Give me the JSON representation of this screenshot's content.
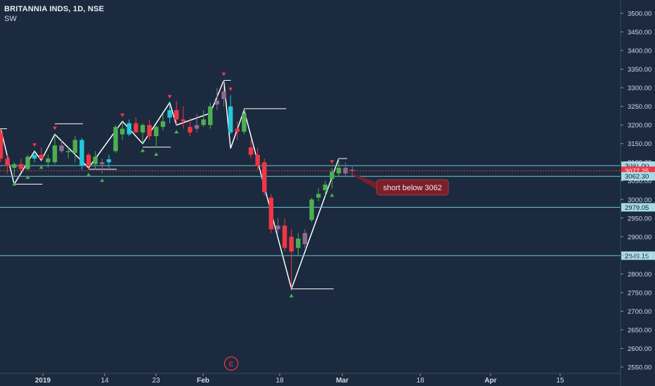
{
  "header": {
    "symbol": "BRITANNIA INDS, 1D, NSE",
    "indicator": "SW"
  },
  "colors": {
    "background": "#1b2a3e",
    "bull": "#4caf50",
    "bear": "#f23645",
    "cyan": "#26c6da",
    "purple": "#8e6b8f",
    "zigzag": "#ffffff",
    "level_line": "#6fc6d6",
    "current_price": "#f23645",
    "annotation_bg": "#7b1f2a"
  },
  "chart_data": {
    "type": "candlestick",
    "y_axis": {
      "range": [
        2540,
        3530
      ],
      "ticks": [
        "3500.00",
        "3450.00",
        "3400.00",
        "3350.00",
        "3300.00",
        "3250.00",
        "3200.00",
        "3150.00",
        "3100.00",
        "3050.00",
        "3000.00",
        "2950.00",
        "2900.00",
        "2850.00",
        "2800.00",
        "2750.00",
        "2700.00",
        "2650.00",
        "2600.00",
        "2550.00"
      ]
    },
    "x_axis": {
      "ticks": [
        "2019",
        "14",
        "23",
        "Feb",
        "18",
        "Mar",
        "18",
        "Apr",
        "15"
      ]
    },
    "candles": [
      {
        "o": 3180,
        "h": 3190,
        "l": 3100,
        "c": 3110,
        "color": "bear"
      },
      {
        "o": 3110,
        "h": 3120,
        "l": 3070,
        "c": 3090,
        "color": "bear"
      },
      {
        "o": 3085,
        "h": 3100,
        "l": 3060,
        "c": 3095,
        "color": "bull"
      },
      {
        "o": 3095,
        "h": 3110,
        "l": 3075,
        "c": 3082,
        "color": "bear"
      },
      {
        "o": 3082,
        "h": 3120,
        "l": 3078,
        "c": 3115,
        "color": "bull"
      },
      {
        "o": 3110,
        "h": 3130,
        "l": 3100,
        "c": 3120,
        "color": "cyan"
      },
      {
        "o": 3120,
        "h": 3140,
        "l": 3105,
        "c": 3110,
        "color": "bear"
      },
      {
        "o": 3110,
        "h": 3120,
        "l": 3085,
        "c": 3100,
        "color": "bull"
      },
      {
        "o": 3100,
        "h": 3175,
        "l": 3095,
        "c": 3145,
        "color": "bull"
      },
      {
        "o": 3145,
        "h": 3160,
        "l": 3125,
        "c": 3130,
        "color": "purple"
      },
      {
        "o": 3130,
        "h": 3140,
        "l": 3110,
        "c": 3128,
        "color": "bull"
      },
      {
        "o": 3125,
        "h": 3170,
        "l": 3100,
        "c": 3160,
        "color": "bull"
      },
      {
        "o": 3160,
        "h": 3165,
        "l": 3080,
        "c": 3090,
        "color": "cyan"
      },
      {
        "o": 3090,
        "h": 3125,
        "l": 3085,
        "c": 3120,
        "color": "bear"
      },
      {
        "o": 3115,
        "h": 3130,
        "l": 3080,
        "c": 3095,
        "color": "bull"
      },
      {
        "o": 3095,
        "h": 3110,
        "l": 3070,
        "c": 3100,
        "color": "purple"
      },
      {
        "o": 3100,
        "h": 3120,
        "l": 3085,
        "c": 3108,
        "color": "cyan"
      },
      {
        "o": 3130,
        "h": 3200,
        "l": 3125,
        "c": 3195,
        "color": "bull"
      },
      {
        "o": 3190,
        "h": 3210,
        "l": 3160,
        "c": 3175,
        "color": "bull"
      },
      {
        "o": 3175,
        "h": 3215,
        "l": 3170,
        "c": 3205,
        "color": "cyan"
      },
      {
        "o": 3205,
        "h": 3220,
        "l": 3180,
        "c": 3180,
        "color": "bear"
      },
      {
        "o": 3180,
        "h": 3205,
        "l": 3150,
        "c": 3200,
        "color": "bull"
      },
      {
        "o": 3200,
        "h": 3215,
        "l": 3160,
        "c": 3170,
        "color": "bear"
      },
      {
        "o": 3170,
        "h": 3200,
        "l": 3140,
        "c": 3195,
        "color": "bull"
      },
      {
        "o": 3195,
        "h": 3230,
        "l": 3185,
        "c": 3210,
        "color": "bull"
      },
      {
        "o": 3220,
        "h": 3260,
        "l": 3205,
        "c": 3240,
        "color": "cyan"
      },
      {
        "o": 3240,
        "h": 3265,
        "l": 3200,
        "c": 3215,
        "color": "bear"
      },
      {
        "o": 3215,
        "h": 3250,
        "l": 3190,
        "c": 3210,
        "color": "bear"
      },
      {
        "o": 3195,
        "h": 3220,
        "l": 3170,
        "c": 3180,
        "color": "bear"
      },
      {
        "o": 3190,
        "h": 3230,
        "l": 3180,
        "c": 3200,
        "color": "purple"
      },
      {
        "o": 3200,
        "h": 3240,
        "l": 3195,
        "c": 3215,
        "color": "bull"
      },
      {
        "o": 3200,
        "h": 3260,
        "l": 3190,
        "c": 3250,
        "color": "bull"
      },
      {
        "o": 3255,
        "h": 3300,
        "l": 3240,
        "c": 3265,
        "color": "purple"
      },
      {
        "o": 3270,
        "h": 3320,
        "l": 3250,
        "c": 3290,
        "color": "purple"
      },
      {
        "o": 3250,
        "h": 3280,
        "l": 3175,
        "c": 3180,
        "color": "cyan"
      },
      {
        "o": 3190,
        "h": 3210,
        "l": 3160,
        "c": 3182,
        "color": "bear"
      },
      {
        "o": 3182,
        "h": 3240,
        "l": 3175,
        "c": 3230,
        "color": "bull"
      },
      {
        "o": 3140,
        "h": 3160,
        "l": 3110,
        "c": 3120,
        "color": "bear"
      },
      {
        "o": 3120,
        "h": 3140,
        "l": 3080,
        "c": 3090,
        "color": "bear"
      },
      {
        "o": 3100,
        "h": 3110,
        "l": 3010,
        "c": 3020,
        "color": "bear"
      },
      {
        "o": 3005,
        "h": 3015,
        "l": 2910,
        "c": 2920,
        "color": "bear"
      },
      {
        "o": 2930,
        "h": 2950,
        "l": 2910,
        "c": 2920,
        "color": "purple"
      },
      {
        "o": 2930,
        "h": 2950,
        "l": 2860,
        "c": 2870,
        "color": "bear"
      },
      {
        "o": 2900,
        "h": 2920,
        "l": 2760,
        "c": 2860,
        "color": "bear"
      },
      {
        "o": 2870,
        "h": 2910,
        "l": 2850,
        "c": 2895,
        "color": "bull"
      },
      {
        "o": 2880,
        "h": 2920,
        "l": 2870,
        "c": 2910,
        "color": "purple"
      },
      {
        "o": 2945,
        "h": 3005,
        "l": 2940,
        "c": 3000,
        "color": "bull"
      },
      {
        "o": 3005,
        "h": 3030,
        "l": 2995,
        "c": 3015,
        "color": "bull"
      },
      {
        "o": 3025,
        "h": 3050,
        "l": 3010,
        "c": 3040,
        "color": "bull"
      },
      {
        "o": 3055,
        "h": 3085,
        "l": 3030,
        "c": 3075,
        "color": "bull"
      },
      {
        "o": 3070,
        "h": 3110,
        "l": 3060,
        "c": 3085,
        "color": "bull"
      },
      {
        "o": 3085,
        "h": 3100,
        "l": 3060,
        "c": 3070,
        "color": "purple"
      },
      {
        "o": 3078,
        "h": 3092,
        "l": 3060,
        "c": 3080,
        "color": "purple"
      }
    ],
    "price_levels": [
      {
        "value": 3091.0,
        "label": "3091.00",
        "style": "level"
      },
      {
        "value": 3077.25,
        "label": "3077.25",
        "style": "current"
      },
      {
        "value": 3062.3,
        "label": "3062.30",
        "style": "level"
      },
      {
        "value": 2979.05,
        "label": "2979.05",
        "style": "level"
      },
      {
        "value": 2849.15,
        "label": "2849.15",
        "style": "level"
      }
    ],
    "annotation": {
      "text": "short below 3062"
    },
    "event_marker": {
      "text": "E"
    }
  }
}
